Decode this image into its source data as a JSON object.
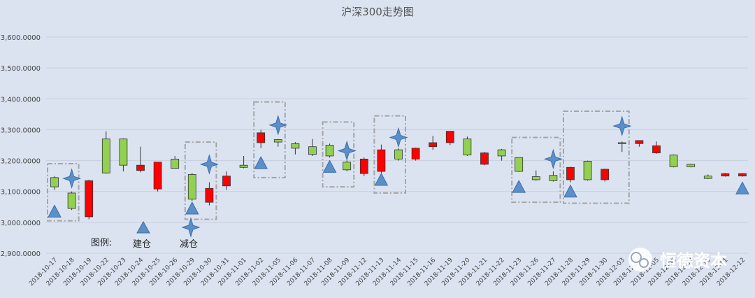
{
  "chart_data": {
    "type": "candlestick",
    "title": "沪深300走势图",
    "ylim": [
      2900,
      3600
    ],
    "yticks": [
      2900,
      3000,
      3100,
      3200,
      3300,
      3400,
      3500,
      3600
    ],
    "ytick_labels": [
      "2,900.0000",
      "3,000.0000",
      "3,100.0000",
      "3,200.0000",
      "3,300.0000",
      "3,400.0000",
      "3,500.0000",
      "3,600.0000"
    ],
    "grid": true,
    "colors": {
      "up": "#92d050",
      "down": "#ff0000",
      "marker": "#5b8fc9"
    },
    "dates": [
      "2018-10-17",
      "2018-10-18",
      "2018-10-19",
      "2018-10-22",
      "2018-10-23",
      "2018-10-24",
      "2018-10-25",
      "2018-10-26",
      "2018-10-29",
      "2018-10-30",
      "2018-10-31",
      "2018-11-01",
      "2018-11-02",
      "2018-11-05",
      "2018-11-06",
      "2018-11-07",
      "2018-11-08",
      "2018-11-09",
      "2018-11-12",
      "2018-11-13",
      "2018-11-14",
      "2018-11-15",
      "2018-11-16",
      "2018-11-19",
      "2018-11-20",
      "2018-11-21",
      "2018-11-22",
      "2018-11-23",
      "2018-11-26",
      "2018-11-27",
      "2018-11-28",
      "2018-11-29",
      "2018-11-30",
      "2018-12-03",
      "2018-12-04",
      "2018-12-05",
      "2018-12-06",
      "2018-12-07",
      "2018-12-10",
      "2018-12-11",
      "2018-12-12"
    ],
    "ohlc": [
      [
        3115,
        3150,
        3105,
        3145
      ],
      [
        3045,
        3100,
        3040,
        3095
      ],
      [
        3135,
        3138,
        3010,
        3018
      ],
      [
        3160,
        3295,
        3158,
        3270
      ],
      [
        3185,
        3272,
        3165,
        3270
      ],
      [
        3185,
        3245,
        3162,
        3168
      ],
      [
        3195,
        3195,
        3100,
        3108
      ],
      [
        3175,
        3215,
        3175,
        3205
      ],
      [
        3075,
        3160,
        3070,
        3155
      ],
      [
        3110,
        3130,
        3055,
        3065
      ],
      [
        3150,
        3165,
        3105,
        3118
      ],
      [
        3178,
        3215,
        3175,
        3185
      ],
      [
        3290,
        3300,
        3240,
        3258
      ],
      [
        3260,
        3270,
        3245,
        3268
      ],
      [
        3240,
        3260,
        3220,
        3255
      ],
      [
        3220,
        3270,
        3215,
        3245
      ],
      [
        3215,
        3255,
        3210,
        3250
      ],
      [
        3170,
        3200,
        3165,
        3195
      ],
      [
        3205,
        3210,
        3150,
        3158
      ],
      [
        3235,
        3252,
        3160,
        3165
      ],
      [
        3205,
        3240,
        3200,
        3235
      ],
      [
        3240,
        3242,
        3200,
        3205
      ],
      [
        3258,
        3280,
        3235,
        3245
      ],
      [
        3295,
        3295,
        3250,
        3258
      ],
      [
        3218,
        3278,
        3215,
        3270
      ],
      [
        3225,
        3228,
        3185,
        3188
      ],
      [
        3215,
        3238,
        3200,
        3235
      ],
      [
        3165,
        3210,
        3163,
        3210
      ],
      [
        3138,
        3168,
        3135,
        3148
      ],
      [
        3135,
        3165,
        3132,
        3152
      ],
      [
        3178,
        3180,
        3130,
        3138
      ],
      [
        3138,
        3200,
        3135,
        3198
      ],
      [
        3172,
        3174,
        3132,
        3138
      ],
      [
        3258,
        3262,
        3228,
        3258
      ],
      [
        3265,
        3265,
        3245,
        3255
      ],
      [
        3248,
        3262,
        3222,
        3225
      ],
      [
        3180,
        3220,
        3178,
        3218
      ],
      [
        3180,
        3190,
        3178,
        3188
      ],
      [
        3142,
        3155,
        3140,
        3150
      ],
      [
        3158,
        3160,
        3148,
        3150
      ],
      [
        3158,
        3160,
        3148,
        3150
      ]
    ],
    "buy_markers": [
      {
        "date": "2018-10-17",
        "value": 3035
      },
      {
        "date": "2018-10-29",
        "value": 3045
      },
      {
        "date": "2018-11-02",
        "value": 3192
      },
      {
        "date": "2018-11-08",
        "value": 3180
      },
      {
        "date": "2018-11-13",
        "value": 3138
      },
      {
        "date": "2018-11-23",
        "value": 3115
      },
      {
        "date": "2018-11-28",
        "value": 3100
      },
      {
        "date": "2018-12-12",
        "value": 3110
      }
    ],
    "sell_markers": [
      {
        "date": "2018-10-18",
        "value": 3142
      },
      {
        "date": "2018-10-30",
        "value": 3188
      },
      {
        "date": "2018-11-05",
        "value": 3315
      },
      {
        "date": "2018-11-09",
        "value": 3232
      },
      {
        "date": "2018-11-14",
        "value": 3275
      },
      {
        "date": "2018-11-27",
        "value": 3205
      },
      {
        "date": "2018-12-03",
        "value": 3312
      }
    ],
    "highlight_boxes": [
      {
        "from": "2018-10-17",
        "to": "2018-10-18",
        "y0": 3005,
        "y1": 3190
      },
      {
        "from": "2018-10-29",
        "to": "2018-10-30",
        "y0": 3010,
        "y1": 3260
      },
      {
        "from": "2018-11-02",
        "to": "2018-11-05",
        "y0": 3145,
        "y1": 3390
      },
      {
        "from": "2018-11-08",
        "to": "2018-11-09",
        "y0": 3115,
        "y1": 3325
      },
      {
        "from": "2018-11-13",
        "to": "2018-11-14",
        "y0": 3095,
        "y1": 3345
      },
      {
        "from": "2018-11-23",
        "to": "2018-11-27",
        "y0": 3065,
        "y1": 3275
      },
      {
        "from": "2018-11-28",
        "to": "2018-12-03",
        "y0": 3062,
        "y1": 3360
      }
    ],
    "legend": {
      "label": "图例:",
      "buy": "建仓",
      "sell": "减仓"
    }
  },
  "watermark": {
    "text": "恒德资本"
  }
}
